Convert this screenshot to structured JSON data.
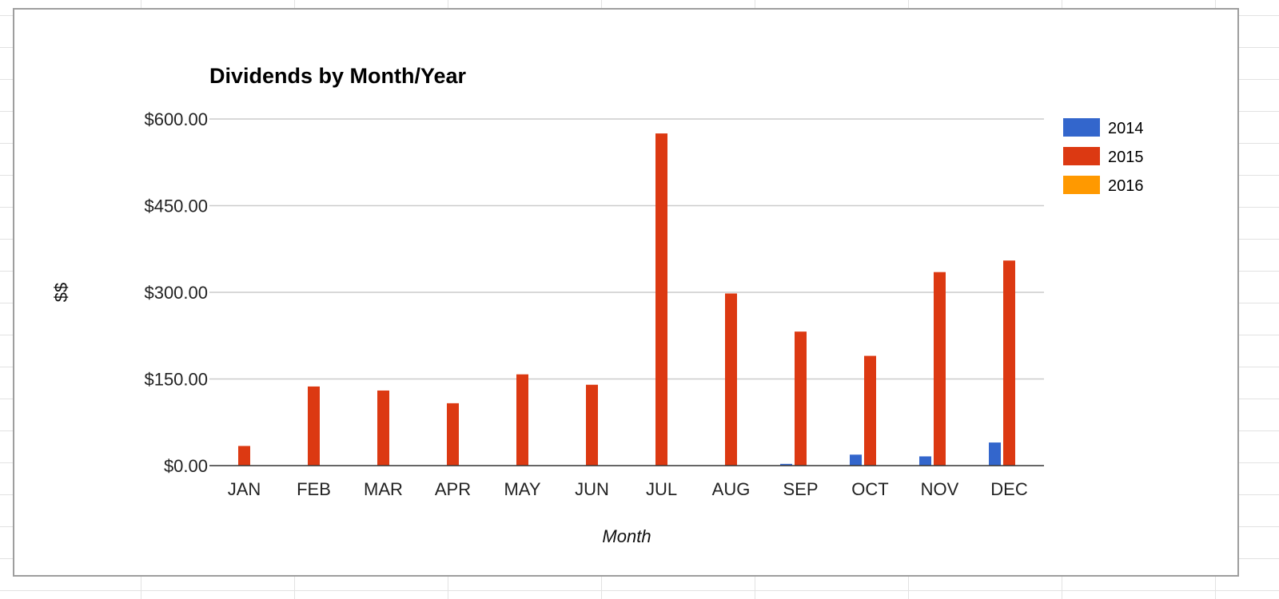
{
  "chart_data": {
    "type": "bar",
    "title": "Dividends by Month/Year",
    "xlabel": "Month",
    "ylabel": "$$",
    "ylim": [
      0,
      600
    ],
    "yticks": [
      0,
      150,
      300,
      450,
      600
    ],
    "ytick_labels": [
      "$0.00",
      "$150.00",
      "$300.00",
      "$450.00",
      "$600.00"
    ],
    "grid": true,
    "legend_position": "right",
    "categories": [
      "JAN",
      "FEB",
      "MAR",
      "APR",
      "MAY",
      "JUN",
      "JUL",
      "AUG",
      "SEP",
      "OCT",
      "NOV",
      "DEC"
    ],
    "series": [
      {
        "name": "2014",
        "color": "#3366cc",
        "values": [
          0,
          0,
          0,
          0,
          0,
          0,
          0,
          0,
          3,
          19,
          16,
          40
        ]
      },
      {
        "name": "2015",
        "color": "#dc3912",
        "values": [
          34,
          137,
          130,
          108,
          158,
          140,
          575,
          298,
          232,
          190,
          335,
          355
        ]
      },
      {
        "name": "2016",
        "color": "#ff9900",
        "values": [
          0,
          0,
          0,
          0,
          0,
          0,
          0,
          0,
          0,
          0,
          0,
          0
        ]
      }
    ]
  }
}
